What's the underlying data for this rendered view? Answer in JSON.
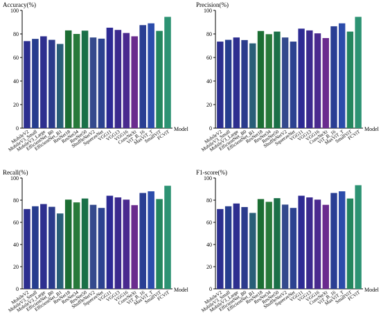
{
  "chart_data": [
    {
      "type": "bar",
      "ylabel": "Accuracy(%)",
      "xlabel": "Model",
      "ylim": [
        0,
        100
      ],
      "yticks": [
        0,
        20,
        40,
        60,
        80,
        100
      ],
      "categories": [
        "MobileV2",
        "MobileV3_Small",
        "MobileV3_Large",
        "EfficientNet_B0",
        "EfficientNet_B1",
        "ResNet18",
        "ResNet34",
        "ResNet50",
        "ShuffleNetV2",
        "SqueezeNet",
        "VGG11",
        "VGG13",
        "VGG16",
        "ConvNeXt",
        "ViT_B_16",
        "MaxViT_T",
        "SmallViT",
        "FCViT"
      ],
      "values": [
        73.9,
        75.8,
        78.0,
        75.0,
        71.5,
        83.0,
        80.0,
        82.8,
        77.0,
        76.0,
        85.3,
        83.4,
        80.8,
        78.0,
        87.5,
        89.0,
        82.6,
        94.5
      ]
    },
    {
      "type": "bar",
      "ylabel": "Precision(%)",
      "xlabel": "Model",
      "ylim": [
        0,
        100
      ],
      "yticks": [
        0,
        20,
        40,
        60,
        80,
        100
      ],
      "categories": [
        "MobileV2",
        "MobileV3_Small",
        "MobileV3_Large",
        "EfficientNet_B0",
        "EfficientNet_B1",
        "ResNet18",
        "ResNet34",
        "ResNet50",
        "ShuffleNetV2",
        "SqueezeNet",
        "VGG11",
        "VGG13",
        "VGG16",
        "ConvNeXt",
        "ViT_B_16",
        "MaxViT_T",
        "SmallViT",
        "FCViT"
      ],
      "values": [
        73.5,
        75.0,
        77.0,
        74.8,
        72.0,
        82.5,
        79.8,
        82.0,
        77.0,
        73.5,
        84.5,
        83.0,
        80.5,
        76.5,
        86.5,
        89.0,
        82.0,
        94.5
      ]
    },
    {
      "type": "bar",
      "ylabel": "Recall(%)",
      "xlabel": "Model",
      "ylim": [
        0,
        100
      ],
      "yticks": [
        0,
        20,
        40,
        60,
        80,
        100
      ],
      "categories": [
        "MobileV2",
        "MobileV3_Small",
        "MobileV3_Large",
        "EfficientNet_B0",
        "EfficientNet_B1",
        "ResNet18",
        "ResNet34",
        "ResNet50",
        "ShuffleNetV2",
        "SqueezeNet",
        "VGG11",
        "VGG13",
        "VGG16",
        "ConvNeXt",
        "ViT_B_16",
        "MaxViT_T",
        "SmallViT",
        "FCViT"
      ],
      "values": [
        72.0,
        74.5,
        76.5,
        74.0,
        68.0,
        80.5,
        78.0,
        81.5,
        75.8,
        73.0,
        84.0,
        82.5,
        80.5,
        75.5,
        86.5,
        88.0,
        81.0,
        93.0
      ]
    },
    {
      "type": "bar",
      "ylabel": "F1-score(%)",
      "xlabel": "Model",
      "ylim": [
        0,
        100
      ],
      "yticks": [
        0,
        20,
        40,
        60,
        80,
        100
      ],
      "categories": [
        "MobileV2",
        "MobileV3_Small",
        "MobileV3_Large",
        "EfficientNet_B0",
        "EfficientNet_B1",
        "ResNet18",
        "ResNet34",
        "ResNet50",
        "ShuffleNetV2",
        "SqueezeNet",
        "VGG11",
        "VGG13",
        "VGG16",
        "ConvNeXt",
        "ViT_B_16",
        "MaxViT_T",
        "SmallViT",
        "FCViT"
      ],
      "values": [
        72.0,
        74.5,
        77.0,
        73.8,
        68.5,
        81.0,
        78.5,
        81.8,
        76.0,
        73.0,
        84.0,
        82.5,
        80.5,
        75.8,
        86.5,
        88.0,
        81.5,
        93.5
      ]
    }
  ],
  "bar_colors": [
    "#2c2f8f",
    "#263d8e",
    "#2e2f8f",
    "#2b3b8c",
    "#295e78",
    "#1c6e33",
    "#287a3a",
    "#1a7048",
    "#344a8d",
    "#2c4290",
    "#2d2a94",
    "#3b2a8e",
    "#4a2a8f",
    "#6a2b8e",
    "#2a3e93",
    "#2c4cab",
    "#25865e",
    "#2d9373"
  ]
}
